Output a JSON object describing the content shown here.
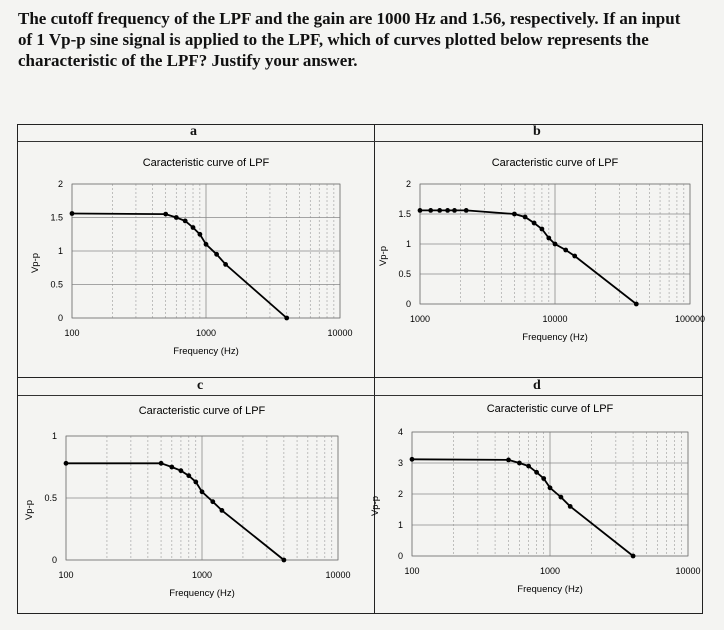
{
  "question": {
    "lines": [
      "The cutoff frequency of the LPF and the gain are 1000 Hz and 1.56, respectively. If an input",
      "of 1 Vp-p sine signal is applied to the LPF, which of curves plotted below represents the",
      "characteristic of the LPF? Justify your answer."
    ]
  },
  "chart_data": [
    {
      "label": "a",
      "type": "line",
      "title": "Caracteristic curve of LPF",
      "xlabel": "Frequency (Hz)",
      "ylabel": "Vp-p",
      "x_scale": "log",
      "xlim": [
        100,
        10000
      ],
      "ylim": [
        0,
        2
      ],
      "x_ticks": [
        "100",
        "1000",
        "10000"
      ],
      "y_ticks": [
        "0",
        "0.5",
        "1",
        "1.5",
        "2"
      ],
      "x": [
        100,
        500,
        600,
        700,
        800,
        900,
        1000,
        1200,
        1400,
        4000
      ],
      "y": [
        1.56,
        1.55,
        1.5,
        1.45,
        1.35,
        1.25,
        1.1,
        0.95,
        0.8,
        0
      ]
    },
    {
      "label": "b",
      "type": "line",
      "title": "Caracteristic curve of LPF",
      "xlabel": "Frequency (Hz)",
      "ylabel": "Vp-p",
      "x_scale": "log",
      "xlim": [
        1000,
        100000
      ],
      "ylim": [
        0,
        2
      ],
      "x_ticks": [
        "1000",
        "10000",
        "100000"
      ],
      "y_ticks": [
        "0",
        "0.5",
        "1",
        "1.5",
        "2"
      ],
      "x": [
        1000,
        1200,
        1400,
        1600,
        1800,
        2200,
        5000,
        6000,
        7000,
        8000,
        9000,
        10000,
        12000,
        14000,
        40000
      ],
      "y": [
        1.56,
        1.56,
        1.56,
        1.56,
        1.56,
        1.56,
        1.5,
        1.45,
        1.35,
        1.25,
        1.1,
        1.0,
        0.9,
        0.8,
        0
      ]
    },
    {
      "label": "c",
      "type": "line",
      "title": "Caracteristic curve of LPF",
      "xlabel": "Frequency (Hz)",
      "ylabel": "Vp-p",
      "x_scale": "log",
      "xlim": [
        100,
        10000
      ],
      "ylim": [
        0,
        1
      ],
      "x_ticks": [
        "100",
        "1000",
        "10000"
      ],
      "y_ticks": [
        "0",
        "0.5",
        "1"
      ],
      "x": [
        100,
        500,
        600,
        700,
        800,
        900,
        1000,
        1200,
        1400,
        4000
      ],
      "y": [
        0.78,
        0.78,
        0.75,
        0.72,
        0.68,
        0.63,
        0.55,
        0.47,
        0.4,
        0
      ]
    },
    {
      "label": "d",
      "type": "line",
      "title": "Caracteristic curve of LPF",
      "xlabel": "Frequency (Hz)",
      "ylabel": "Vp-p",
      "x_scale": "log",
      "xlim": [
        100,
        10000
      ],
      "ylim": [
        0,
        4
      ],
      "x_ticks": [
        "100",
        "1000",
        "10000"
      ],
      "y_ticks": [
        "0",
        "1",
        "2",
        "3",
        "4"
      ],
      "x": [
        100,
        500,
        600,
        700,
        800,
        900,
        1000,
        1200,
        1400,
        4000
      ],
      "y": [
        3.12,
        3.1,
        3.0,
        2.9,
        2.7,
        2.5,
        2.2,
        1.9,
        1.6,
        0
      ]
    }
  ]
}
